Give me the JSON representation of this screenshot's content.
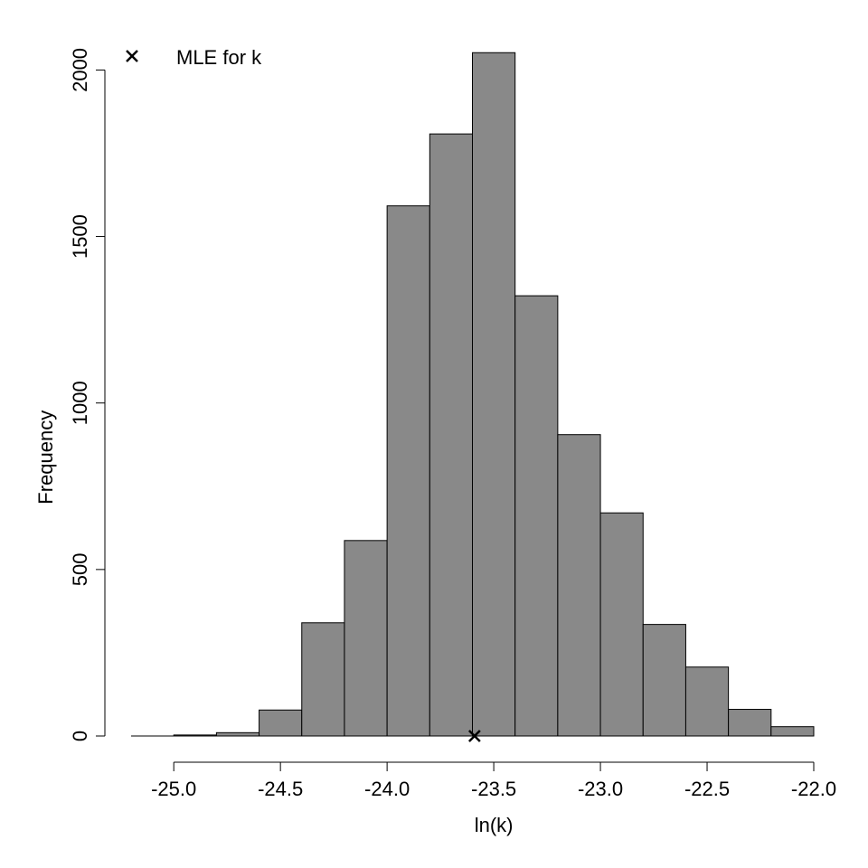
{
  "chart_data": {
    "type": "bar",
    "xlabel": "ln(k)",
    "ylabel": "Frequency",
    "xlim": [
      -25.2,
      -22.0
    ],
    "ylim": [
      0,
      2050
    ],
    "x_ticks": [
      -25.0,
      -24.5,
      -24.0,
      -23.5,
      -23.0,
      -22.5,
      -22.0
    ],
    "x_tick_labels": [
      "-25.0",
      "-24.5",
      "-24.0",
      "-23.5",
      "-23.0",
      "-22.5",
      "-22.0"
    ],
    "y_ticks": [
      0,
      500,
      1000,
      1500,
      2000
    ],
    "y_tick_labels": [
      "0",
      "500",
      "1000",
      "1500",
      "2000"
    ],
    "bins": [
      {
        "start": -25.2,
        "end": -25.0,
        "value": 0
      },
      {
        "start": -25.0,
        "end": -24.8,
        "value": 3
      },
      {
        "start": -24.8,
        "end": -24.6,
        "value": 10
      },
      {
        "start": -24.6,
        "end": -24.4,
        "value": 78
      },
      {
        "start": -24.4,
        "end": -24.2,
        "value": 340
      },
      {
        "start": -24.2,
        "end": -24.0,
        "value": 587
      },
      {
        "start": -24.0,
        "end": -23.8,
        "value": 1592
      },
      {
        "start": -23.8,
        "end": -23.6,
        "value": 1808
      },
      {
        "start": -23.6,
        "end": -23.4,
        "value": 2052
      },
      {
        "start": -23.4,
        "end": -23.2,
        "value": 1322
      },
      {
        "start": -23.2,
        "end": -23.0,
        "value": 905
      },
      {
        "start": -23.0,
        "end": -22.8,
        "value": 670
      },
      {
        "start": -22.8,
        "end": -22.6,
        "value": 335
      },
      {
        "start": -22.6,
        "end": -22.4,
        "value": 207
      },
      {
        "start": -22.4,
        "end": -22.2,
        "value": 80
      },
      {
        "start": -22.2,
        "end": -22.0,
        "value": 28
      }
    ],
    "mle_point": {
      "x": -23.59,
      "y": 0
    },
    "legend": {
      "label": "MLE for k",
      "marker": "x",
      "position": "top-left"
    },
    "colors": {
      "bar_fill": "#898989",
      "bar_stroke": "#000000"
    }
  }
}
